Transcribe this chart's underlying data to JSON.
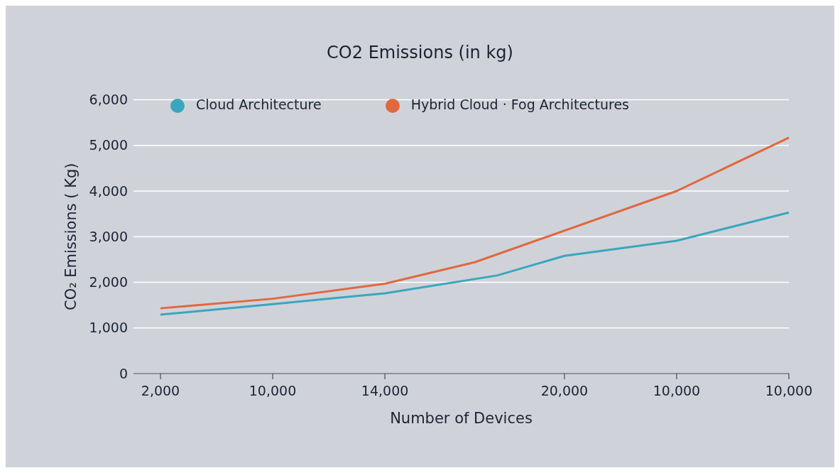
{
  "chart_data": {
    "type": "line",
    "title": "CO2 Emissions (in kg)",
    "xlabel": "Number of Devices",
    "ylabel": "CO₂ Emissions  ( Kg)",
    "categories": [
      "2,000",
      null,
      null,
      null,
      null,
      "10,000",
      null,
      null,
      null,
      null,
      "14,000",
      null,
      null,
      null,
      null,
      null,
      null,
      null,
      "20,000",
      null,
      null,
      null,
      null,
      "10,000",
      null,
      null,
      null,
      null,
      "10,000"
    ],
    "series": [
      {
        "name": "Cloud Architecture",
        "color": "#3aa6be",
        "values": [
          1290,
          null,
          null,
          null,
          null,
          1520,
          null,
          null,
          null,
          null,
          1760,
          null,
          null,
          null,
          null,
          2150,
          null,
          null,
          2580,
          null,
          null,
          null,
          null,
          2910,
          null,
          null,
          null,
          null,
          3530
        ]
      },
      {
        "name": "Hybrid Cloud · Fog Architectures",
        "color": "#e0683f",
        "values": [
          1430,
          null,
          null,
          null,
          null,
          1640,
          null,
          null,
          null,
          null,
          1970,
          null,
          null,
          null,
          2440,
          null,
          null,
          null,
          null,
          null,
          null,
          null,
          null,
          4000,
          null,
          null,
          null,
          null,
          5170
        ]
      }
    ],
    "ylim": [
      0,
      6000
    ],
    "yticks": [
      0,
      {
        "value": 1000,
        "label": "1,000"
      },
      {
        "value": 2000,
        "label": "2,000"
      },
      {
        "value": 3000,
        "label": "3,000"
      },
      {
        "value": 4000,
        "label": "4,000"
      },
      {
        "value": 5000,
        "label": "5,000"
      },
      {
        "value": 6000,
        "label": "6,000"
      }
    ],
    "grid": "y",
    "legend": "top",
    "marker": "none",
    "line_style": "solid"
  }
}
